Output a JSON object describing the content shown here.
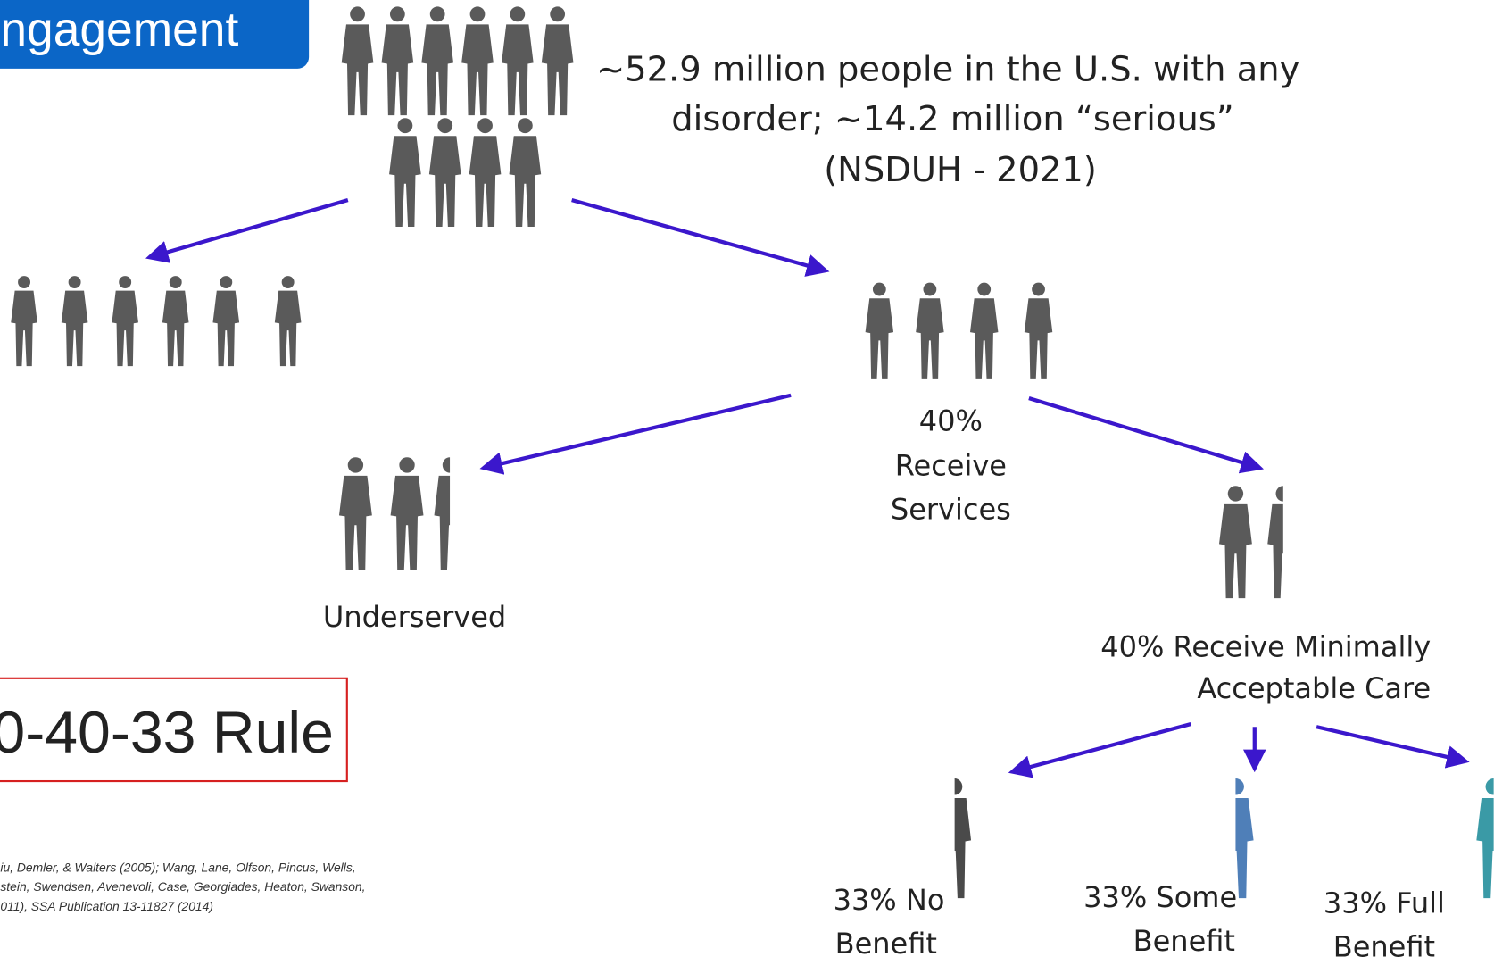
{
  "header": {
    "title": "ngagement"
  },
  "summary": {
    "lines": [
      "~52.9 million people in the U.S. with any",
      "disorder; ~14.2 million “serious”",
      "(NSDUH - 2021)"
    ]
  },
  "nodes": [
    {
      "lines": [
        "40%",
        "Receive",
        "Services"
      ]
    },
    {
      "lines": [
        "Underserved"
      ]
    },
    {
      "lines": [
        "40% Receive Minimally",
        "Acceptable Care"
      ]
    },
    {
      "lines": [
        "33% No",
        "Benefit"
      ]
    },
    {
      "lines": [
        "33% Some",
        "Benefit"
      ]
    },
    {
      "lines": [
        "33% Full",
        "Benefit"
      ]
    }
  ],
  "rule": {
    "label": "0-40-33 Rule"
  },
  "citations": [
    "iu, Demler, & Walters (2005); Wang, Lane, Olfson, Pincus, Wells,",
    "stein, Swendsen, Avenevoli, Case, Georgiades, Heaton, Swanson,",
    "011), SSA Publication 13-11827 (2014)"
  ]
}
